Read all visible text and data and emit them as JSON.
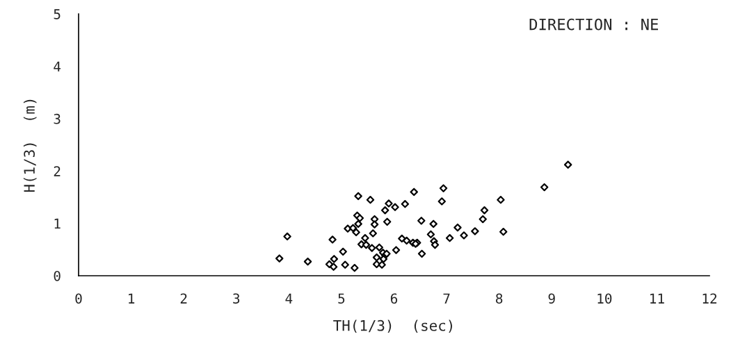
{
  "chart_data": {
    "type": "scatter",
    "title": "DIRECTION : NE",
    "xlabel": "TH(1/3)  (sec)",
    "ylabel": "H(1/3)  (m)",
    "xlim": [
      0,
      12
    ],
    "xticks": [
      0,
      1,
      2,
      3,
      4,
      5,
      6,
      7,
      8,
      9,
      10,
      11,
      12
    ],
    "ylim": [
      0,
      5
    ],
    "yticks": [
      0,
      1,
      2,
      3,
      4,
      5
    ],
    "grid": false,
    "marker": "diamond",
    "series": [
      {
        "color": "#000000",
        "x": [
          3.82,
          3.97,
          4.36,
          4.83,
          4.77,
          4.86,
          4.85,
          5.03,
          5.07,
          5.12,
          5.22,
          5.28,
          5.32,
          5.3,
          5.35,
          5.32,
          5.25,
          5.45,
          5.38,
          5.47,
          5.55,
          5.6,
          5.63,
          5.63,
          5.58,
          5.72,
          5.67,
          5.67,
          5.77,
          5.79,
          5.83,
          5.86,
          5.8,
          5.83,
          5.9,
          5.87,
          6.02,
          6.04,
          6.15,
          6.24,
          6.21,
          6.38,
          6.36,
          6.44,
          6.41,
          6.52,
          6.53,
          6.7,
          6.75,
          6.76,
          6.78,
          6.91,
          6.94,
          7.06,
          7.21,
          7.33,
          7.54,
          7.69,
          7.72,
          8.03,
          8.08,
          8.86,
          9.31
        ],
        "values": [
          0.33,
          0.75,
          0.27,
          0.69,
          0.22,
          0.32,
          0.17,
          0.46,
          0.21,
          0.9,
          0.91,
          0.83,
          1.52,
          1.15,
          1.1,
          0.99,
          0.15,
          0.72,
          0.6,
          0.59,
          1.45,
          0.81,
          1.08,
          0.98,
          0.53,
          0.54,
          0.35,
          0.22,
          0.21,
          0.44,
          0.39,
          0.42,
          0.32,
          1.25,
          1.38,
          1.03,
          1.31,
          0.49,
          0.71,
          0.67,
          1.37,
          1.6,
          0.63,
          0.63,
          0.61,
          1.05,
          0.42,
          0.79,
          0.99,
          0.66,
          0.59,
          1.42,
          1.67,
          0.72,
          0.92,
          0.77,
          0.85,
          1.08,
          1.25,
          1.45,
          0.84,
          1.69,
          2.12
        ]
      }
    ]
  }
}
